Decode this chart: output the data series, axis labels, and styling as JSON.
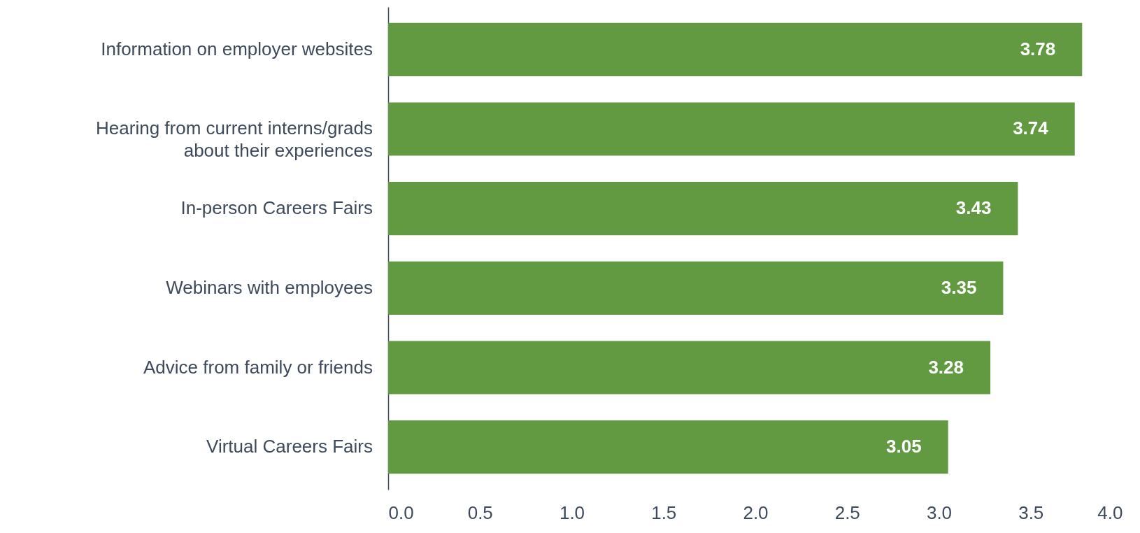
{
  "chart_data": {
    "type": "bar",
    "orientation": "horizontal",
    "categories": [
      "Information on employer websites",
      "Hearing from current interns/grads about their experiences",
      "In-person Careers Fairs",
      "Webinars with employees",
      "Advice from family or friends",
      "Virtual Careers Fairs"
    ],
    "values": [
      3.78,
      3.74,
      3.43,
      3.35,
      3.28,
      3.05
    ],
    "color": "#619a41",
    "xlim": [
      0,
      4
    ],
    "xticks": [
      {
        "value": 0,
        "label": "0.0"
      },
      0.5,
      {
        "value": 1,
        "label": "1.0"
      },
      1.5,
      {
        "value": 2,
        "label": "2.0"
      },
      2.5,
      {
        "value": 3,
        "label": "3.0"
      },
      3.5,
      {
        "value": 4,
        "label": "4.0"
      }
    ],
    "grid": false,
    "data_labels": true
  }
}
